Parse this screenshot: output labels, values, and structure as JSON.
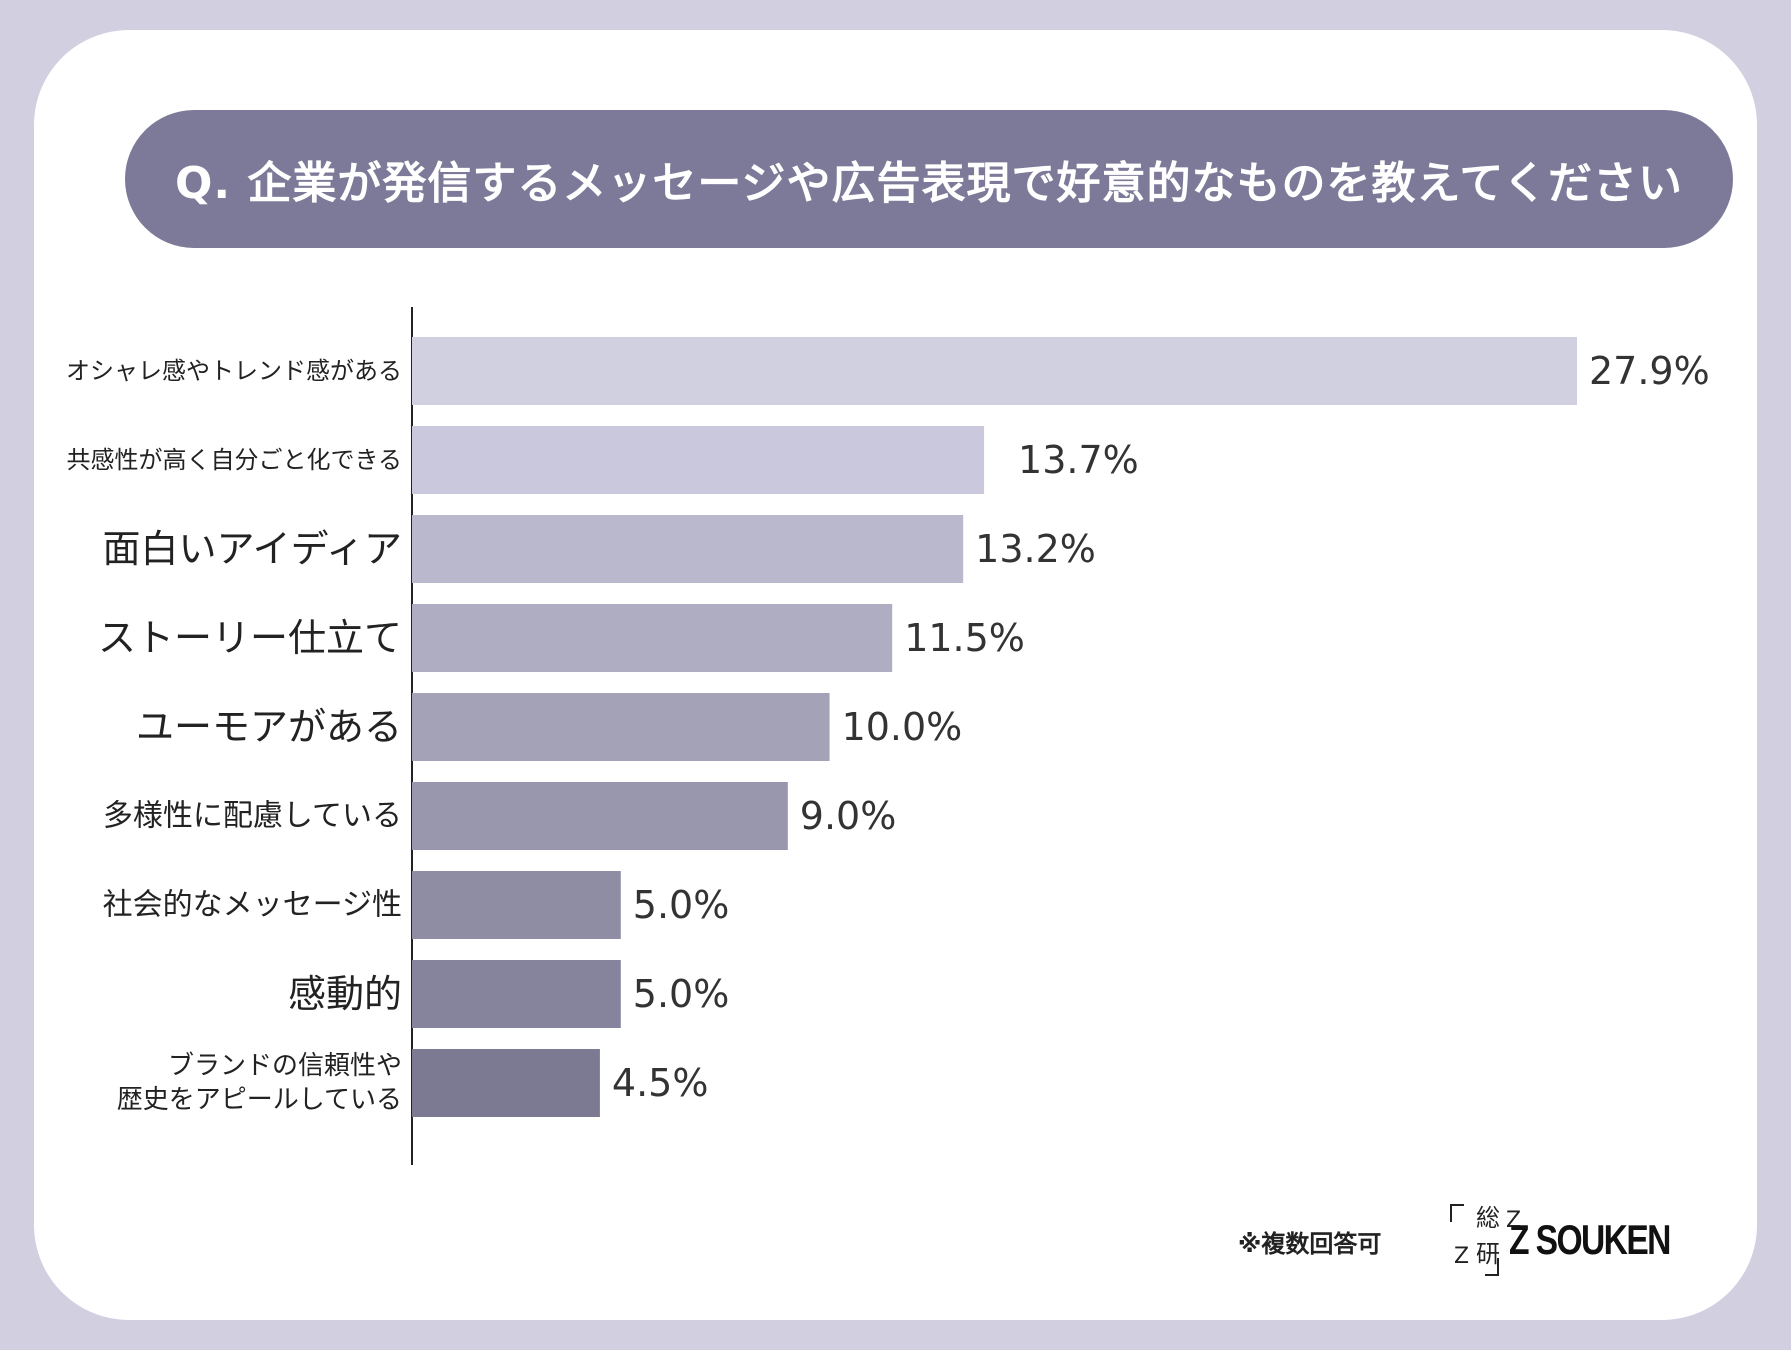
{
  "title": "Q. 企業が発信するメッセージや広告表現で好意的なものを教えてください",
  "note": "※複数回答可",
  "logo": {
    "mark_top": "総",
    "mark_bottom": "研",
    "mark_z_top": "Z",
    "mark_z_bottom": "Z",
    "text": "Z SOUKEN"
  },
  "colors": {
    "frame": "#d1cfe0",
    "title_bg": "#7c7a98",
    "bars": [
      "#d1d0e0",
      "#c9c8dc",
      "#b9b8cc",
      "#aeadc2",
      "#a3a2b7",
      "#9897ae",
      "#8f8da4",
      "#85849c",
      "#7b7a92"
    ]
  },
  "chart_data": {
    "type": "bar",
    "orientation": "horizontal",
    "title": "Q. 企業が発信するメッセージや広告表現で好意的なものを教えてください",
    "unit": "%",
    "categories": [
      "オシャレ感やトレンド感がある",
      "共感性が高く自分ごと化できる",
      "面白いアイディア",
      "ストーリー仕立て",
      "ユーモアがある",
      "多様性に配慮している",
      "社会的なメッセージ性",
      "感動的",
      "ブランドの信頼性や\n歴史をアピールしている"
    ],
    "values": [
      27.9,
      13.7,
      13.2,
      11.5,
      10.0,
      9.0,
      5.0,
      5.0,
      4.5
    ],
    "labels": [
      "27.9%",
      "13.7%",
      "13.2%",
      "11.5%",
      "10.0%",
      "9.0%",
      "5.0%",
      "5.0%",
      "4.5%"
    ],
    "xlim": [
      0,
      27.9
    ],
    "grid": false,
    "legend": "none"
  }
}
